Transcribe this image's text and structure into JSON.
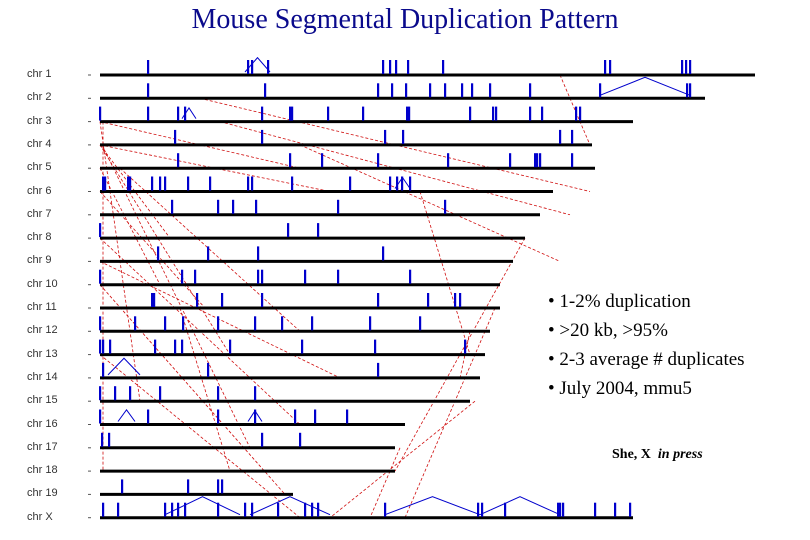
{
  "title": "Mouse Segmental Duplication Pattern",
  "chromosomes": [
    {
      "label": "chr 1",
      "length": 755,
      "marks": [
        148,
        248,
        252,
        268,
        383,
        390,
        396,
        408,
        443,
        605,
        610,
        682,
        686,
        690
      ]
    },
    {
      "label": "chr 2",
      "length": 705,
      "marks": [
        148,
        265,
        378,
        392,
        406,
        430,
        445,
        462,
        472,
        490,
        530,
        600,
        687,
        690
      ]
    },
    {
      "label": "chr 3",
      "length": 633,
      "marks": [
        100,
        148,
        178,
        185,
        262,
        290,
        292,
        328,
        363,
        407,
        409,
        470,
        493,
        496,
        530,
        542,
        576,
        580
      ]
    },
    {
      "label": "chr 4",
      "length": 592,
      "marks": [
        175,
        262,
        385,
        403,
        560,
        572
      ]
    },
    {
      "label": "chr 5",
      "length": 595,
      "marks": [
        178,
        290,
        322,
        378,
        448,
        510,
        535,
        537,
        540,
        572
      ]
    },
    {
      "label": "chr 6",
      "length": 553,
      "marks": [
        103,
        105,
        128,
        130,
        152,
        160,
        165,
        188,
        210,
        248,
        252,
        292,
        350,
        390,
        397,
        402,
        410
      ]
    },
    {
      "label": "chr 7",
      "length": 540,
      "marks": [
        172,
        218,
        233,
        256,
        338,
        445
      ]
    },
    {
      "label": "chr 8",
      "length": 525,
      "marks": [
        100,
        288,
        318
      ]
    },
    {
      "label": "chr 9",
      "length": 513,
      "marks": [
        158,
        208,
        258,
        383
      ]
    },
    {
      "label": "chr 10",
      "length": 500,
      "marks": [
        100,
        182,
        195,
        258,
        262,
        305,
        338,
        410
      ]
    },
    {
      "label": "chr 11",
      "length": 500,
      "marks": [
        152,
        154,
        197,
        222,
        262,
        378,
        428,
        455,
        460
      ]
    },
    {
      "label": "chr 12",
      "length": 490,
      "marks": [
        100,
        135,
        165,
        183,
        218,
        255,
        282,
        312,
        370,
        420
      ]
    },
    {
      "label": "chr 13",
      "length": 485,
      "marks": [
        100,
        103,
        110,
        155,
        175,
        182,
        230,
        302,
        375,
        465
      ]
    },
    {
      "label": "chr 14",
      "length": 480,
      "marks": [
        103,
        208,
        378
      ]
    },
    {
      "label": "chr 15",
      "length": 470,
      "marks": [
        100,
        115,
        130,
        160,
        218,
        255
      ]
    },
    {
      "label": "chr 16",
      "length": 405,
      "marks": [
        100,
        148,
        218,
        255,
        295,
        315,
        347
      ]
    },
    {
      "label": "chr 17",
      "length": 395,
      "marks": [
        102,
        109,
        262,
        300
      ]
    },
    {
      "label": "chr 18",
      "length": 395,
      "marks": []
    },
    {
      "label": "chr 19",
      "length": 293,
      "marks": [
        122,
        188,
        218,
        222
      ]
    },
    {
      "label": "chr X",
      "length": 633,
      "marks": [
        103,
        118,
        165,
        172,
        178,
        185,
        218,
        245,
        252,
        278,
        305,
        312,
        318,
        385,
        478,
        482,
        505,
        558,
        560,
        563,
        595,
        615,
        630
      ]
    }
  ],
  "bullets": [
    "• 1-2% duplication",
    "• >20 kb, >95%",
    "• 2-3 average # duplicates",
    "• July 2004, mmu5"
  ],
  "citation": {
    "author": "She, X",
    "status": "in press"
  },
  "colors": {
    "title": "#0a0a8c",
    "bar": "#000000",
    "duplication": "#0000cc",
    "link": "#d01010"
  }
}
